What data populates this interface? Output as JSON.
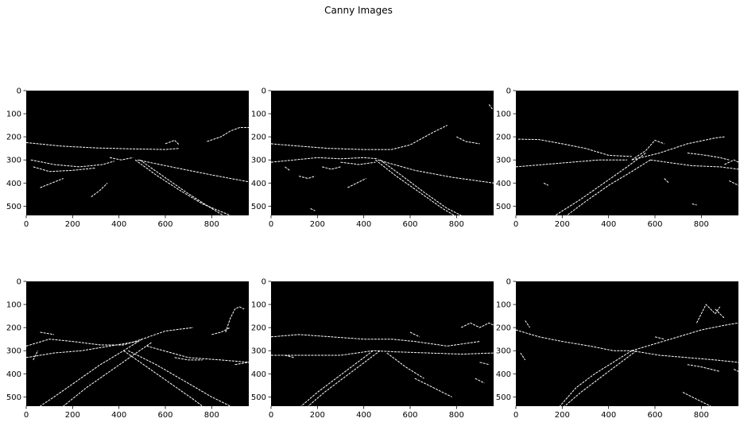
{
  "figure": {
    "title": "Canny Images"
  },
  "axes_template": {
    "x_ticks": [
      0,
      200,
      400,
      600,
      800
    ],
    "y_ticks": [
      0,
      100,
      200,
      300,
      400,
      500
    ],
    "xlim": [
      0,
      960
    ],
    "ylim": [
      540,
      0
    ]
  },
  "panels": [
    {
      "id": "canny-image-1",
      "edges": [
        [
          [
            0,
            225
          ],
          [
            150,
            240
          ],
          [
            300,
            248
          ],
          [
            450,
            252
          ],
          [
            600,
            255
          ],
          [
            660,
            250
          ]
        ],
        [
          [
            20,
            300
          ],
          [
            120,
            320
          ],
          [
            230,
            330
          ],
          [
            330,
            320
          ],
          [
            380,
            305
          ]
        ],
        [
          [
            30,
            330
          ],
          [
            100,
            350
          ],
          [
            200,
            345
          ],
          [
            300,
            335
          ]
        ],
        [
          [
            480,
            300
          ],
          [
            650,
            335
          ],
          [
            800,
            365
          ],
          [
            960,
            395
          ]
        ],
        [
          [
            470,
            300
          ],
          [
            560,
            365
          ],
          [
            660,
            430
          ],
          [
            760,
            490
          ],
          [
            880,
            540
          ]
        ],
        [
          [
            490,
            300
          ],
          [
            590,
            370
          ],
          [
            690,
            440
          ],
          [
            800,
            510
          ],
          [
            850,
            540
          ]
        ],
        [
          [
            280,
            460
          ],
          [
            320,
            430
          ],
          [
            350,
            400
          ]
        ],
        [
          [
            60,
            420
          ],
          [
            110,
            400
          ],
          [
            160,
            380
          ]
        ],
        [
          [
            600,
            230
          ],
          [
            640,
            215
          ],
          [
            660,
            235
          ]
        ],
        [
          [
            780,
            220
          ],
          [
            840,
            200
          ],
          [
            880,
            175
          ],
          [
            920,
            160
          ],
          [
            960,
            160
          ]
        ],
        [
          [
            360,
            290
          ],
          [
            410,
            300
          ],
          [
            460,
            290
          ]
        ]
      ]
    },
    {
      "id": "canny-image-2",
      "edges": [
        [
          [
            0,
            230
          ],
          [
            120,
            240
          ],
          [
            250,
            250
          ],
          [
            400,
            255
          ],
          [
            520,
            255
          ],
          [
            600,
            235
          ],
          [
            700,
            180
          ],
          [
            760,
            150
          ]
        ],
        [
          [
            0,
            310
          ],
          [
            100,
            300
          ],
          [
            200,
            290
          ],
          [
            300,
            295
          ],
          [
            400,
            290
          ],
          [
            460,
            295
          ]
        ],
        [
          [
            460,
            300
          ],
          [
            620,
            345
          ],
          [
            780,
            375
          ],
          [
            960,
            400
          ]
        ],
        [
          [
            450,
            300
          ],
          [
            540,
            370
          ],
          [
            640,
            440
          ],
          [
            740,
            510
          ],
          [
            790,
            540
          ]
        ],
        [
          [
            470,
            300
          ],
          [
            560,
            365
          ],
          [
            660,
            440
          ],
          [
            760,
            510
          ],
          [
            820,
            540
          ]
        ],
        [
          [
            300,
            310
          ],
          [
            380,
            320
          ],
          [
            450,
            310
          ]
        ],
        [
          [
            220,
            330
          ],
          [
            260,
            340
          ],
          [
            300,
            330
          ]
        ],
        [
          [
            330,
            420
          ],
          [
            370,
            400
          ],
          [
            410,
            380
          ]
        ],
        [
          [
            120,
            370
          ],
          [
            160,
            380
          ],
          [
            190,
            370
          ]
        ],
        [
          [
            940,
            60
          ],
          [
            955,
            80
          ]
        ],
        [
          [
            800,
            200
          ],
          [
            840,
            220
          ],
          [
            900,
            230
          ]
        ],
        [
          [
            60,
            330
          ],
          [
            80,
            345
          ]
        ],
        [
          [
            170,
            510
          ],
          [
            190,
            520
          ]
        ]
      ]
    },
    {
      "id": "canny-image-3",
      "edges": [
        [
          [
            0,
            330
          ],
          [
            120,
            320
          ],
          [
            240,
            310
          ],
          [
            360,
            300
          ],
          [
            480,
            300
          ]
        ],
        [
          [
            10,
            210
          ],
          [
            100,
            212
          ],
          [
            200,
            230
          ],
          [
            300,
            250
          ],
          [
            400,
            280
          ],
          [
            500,
            285
          ]
        ],
        [
          [
            500,
            300
          ],
          [
            620,
            270
          ],
          [
            740,
            230
          ],
          [
            860,
            205
          ],
          [
            900,
            200
          ]
        ],
        [
          [
            580,
            300
          ],
          [
            650,
            310
          ],
          [
            760,
            325
          ],
          [
            880,
            330
          ],
          [
            960,
            340
          ]
        ],
        [
          [
            560,
            270
          ],
          [
            480,
            330
          ],
          [
            380,
            400
          ],
          [
            280,
            470
          ],
          [
            170,
            540
          ]
        ],
        [
          [
            580,
            300
          ],
          [
            500,
            350
          ],
          [
            400,
            410
          ],
          [
            300,
            480
          ],
          [
            220,
            540
          ]
        ],
        [
          [
            500,
            300
          ],
          [
            560,
            260
          ],
          [
            600,
            215
          ],
          [
            640,
            230
          ]
        ],
        [
          [
            740,
            270
          ],
          [
            820,
            280
          ],
          [
            880,
            290
          ],
          [
            920,
            300
          ]
        ],
        [
          [
            900,
            320
          ],
          [
            940,
            300
          ],
          [
            960,
            310
          ]
        ],
        [
          [
            920,
            390
          ],
          [
            960,
            410
          ]
        ],
        [
          [
            640,
            380
          ],
          [
            660,
            400
          ]
        ],
        [
          [
            120,
            400
          ],
          [
            140,
            410
          ]
        ],
        [
          [
            760,
            490
          ],
          [
            780,
            495
          ]
        ]
      ]
    },
    {
      "id": "canny-image-4",
      "edges": [
        [
          [
            0,
            280
          ],
          [
            100,
            250
          ],
          [
            200,
            260
          ],
          [
            320,
            275
          ],
          [
            420,
            275
          ],
          [
            500,
            250
          ],
          [
            600,
            215
          ],
          [
            720,
            200
          ]
        ],
        [
          [
            0,
            330
          ],
          [
            120,
            310
          ],
          [
            240,
            300
          ],
          [
            360,
            280
          ],
          [
            480,
            260
          ]
        ],
        [
          [
            520,
            280
          ],
          [
            700,
            330
          ],
          [
            840,
            340
          ],
          [
            960,
            350
          ]
        ],
        [
          [
            500,
            250
          ],
          [
            420,
            300
          ],
          [
            320,
            360
          ],
          [
            220,
            430
          ],
          [
            120,
            500
          ],
          [
            60,
            540
          ]
        ],
        [
          [
            540,
            265
          ],
          [
            460,
            320
          ],
          [
            360,
            390
          ],
          [
            260,
            460
          ],
          [
            160,
            540
          ]
        ],
        [
          [
            440,
            300
          ],
          [
            560,
            360
          ],
          [
            680,
            430
          ],
          [
            800,
            500
          ],
          [
            880,
            540
          ]
        ],
        [
          [
            420,
            300
          ],
          [
            520,
            370
          ],
          [
            620,
            440
          ],
          [
            720,
            510
          ],
          [
            760,
            540
          ]
        ],
        [
          [
            860,
            220
          ],
          [
            880,
            160
          ],
          [
            900,
            120
          ],
          [
            920,
            110
          ],
          [
            940,
            120
          ]
        ],
        [
          [
            800,
            230
          ],
          [
            840,
            220
          ],
          [
            880,
            200
          ]
        ],
        [
          [
            640,
            330
          ],
          [
            700,
            340
          ],
          [
            760,
            340
          ]
        ],
        [
          [
            900,
            360
          ],
          [
            960,
            350
          ]
        ],
        [
          [
            30,
            340
          ],
          [
            50,
            300
          ]
        ],
        [
          [
            60,
            220
          ],
          [
            120,
            230
          ]
        ]
      ]
    },
    {
      "id": "canny-image-5",
      "edges": [
        [
          [
            0,
            240
          ],
          [
            120,
            230
          ],
          [
            260,
            240
          ],
          [
            400,
            250
          ],
          [
            520,
            250
          ],
          [
            620,
            260
          ],
          [
            760,
            280
          ],
          [
            900,
            260
          ]
        ],
        [
          [
            0,
            320
          ],
          [
            140,
            320
          ],
          [
            300,
            320
          ],
          [
            440,
            300
          ],
          [
            540,
            305
          ],
          [
            680,
            310
          ],
          [
            820,
            315
          ],
          [
            960,
            310
          ]
        ],
        [
          [
            440,
            300
          ],
          [
            360,
            360
          ],
          [
            280,
            420
          ],
          [
            200,
            480
          ],
          [
            130,
            540
          ]
        ],
        [
          [
            470,
            300
          ],
          [
            390,
            360
          ],
          [
            310,
            420
          ],
          [
            230,
            480
          ],
          [
            160,
            540
          ]
        ],
        [
          [
            620,
            420
          ],
          [
            700,
            460
          ],
          [
            780,
            500
          ]
        ],
        [
          [
            500,
            310
          ],
          [
            580,
            370
          ],
          [
            660,
            420
          ]
        ],
        [
          [
            820,
            200
          ],
          [
            860,
            180
          ],
          [
            900,
            200
          ],
          [
            940,
            180
          ],
          [
            960,
            190
          ]
        ],
        [
          [
            600,
            220
          ],
          [
            640,
            240
          ]
        ],
        [
          [
            60,
            320
          ],
          [
            100,
            330
          ]
        ],
        [
          [
            880,
            420
          ],
          [
            920,
            440
          ]
        ],
        [
          [
            900,
            350
          ],
          [
            940,
            360
          ]
        ]
      ]
    },
    {
      "id": "canny-image-6",
      "edges": [
        [
          [
            0,
            210
          ],
          [
            100,
            240
          ],
          [
            200,
            260
          ],
          [
            320,
            280
          ],
          [
            420,
            300
          ],
          [
            500,
            300
          ]
        ],
        [
          [
            500,
            300
          ],
          [
            600,
            270
          ],
          [
            700,
            240
          ],
          [
            800,
            210
          ],
          [
            900,
            190
          ],
          [
            960,
            180
          ]
        ],
        [
          [
            500,
            300
          ],
          [
            620,
            320
          ],
          [
            740,
            330
          ],
          [
            860,
            340
          ],
          [
            960,
            350
          ]
        ],
        [
          [
            500,
            300
          ],
          [
            420,
            350
          ],
          [
            340,
            400
          ],
          [
            260,
            460
          ],
          [
            190,
            540
          ]
        ],
        [
          [
            520,
            300
          ],
          [
            440,
            360
          ],
          [
            360,
            420
          ],
          [
            280,
            480
          ],
          [
            210,
            540
          ]
        ],
        [
          [
            720,
            480
          ],
          [
            800,
            520
          ],
          [
            840,
            540
          ]
        ],
        [
          [
            780,
            180
          ],
          [
            800,
            140
          ],
          [
            820,
            100
          ],
          [
            860,
            140
          ],
          [
            880,
            110
          ]
        ],
        [
          [
            860,
            120
          ],
          [
            900,
            160
          ]
        ],
        [
          [
            740,
            360
          ],
          [
            800,
            370
          ],
          [
            880,
            390
          ]
        ],
        [
          [
            40,
            170
          ],
          [
            60,
            200
          ]
        ],
        [
          [
            20,
            310
          ],
          [
            40,
            340
          ]
        ],
        [
          [
            940,
            380
          ],
          [
            960,
            390
          ]
        ],
        [
          [
            600,
            240
          ],
          [
            640,
            250
          ]
        ]
      ]
    }
  ]
}
